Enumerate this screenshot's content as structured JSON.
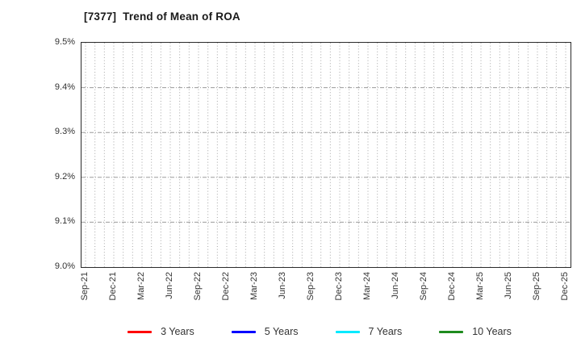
{
  "page": {
    "background": "#ffffff"
  },
  "chart_data": {
    "type": "line",
    "title": "[7377]  Trend of Mean of ROA",
    "xlabel": "",
    "ylabel": "",
    "ylim": [
      9.0,
      9.5
    ],
    "y_tick_step": 0.1,
    "y_tick_labels": [
      "9.0%",
      "9.1%",
      "9.2%",
      "9.3%",
      "9.4%",
      "9.5%"
    ],
    "x_tick_labels": [
      "Sep-21",
      "Dec-21",
      "Mar-22",
      "Jun-22",
      "Sep-22",
      "Dec-22",
      "Mar-23",
      "Jun-23",
      "Sep-23",
      "Dec-23",
      "Mar-24",
      "Jun-24",
      "Sep-24",
      "Dec-24",
      "Mar-25",
      "Jun-25",
      "Sep-25",
      "Dec-25"
    ],
    "months_between_ticks": 3,
    "grid": {
      "vertical": "dotted, one line per month",
      "horizontal": "dash-dot, one line per 0.1%",
      "vertical_color": "#a6a6a6",
      "horizontal_color": "#9b9b9b"
    },
    "axis_border_color": "#2b2b2b",
    "tick_label_color": "#333333",
    "title_color": "#1a1a1a",
    "series": [
      {
        "name": "3 Years",
        "color": "#ff0000",
        "values": []
      },
      {
        "name": "5 Years",
        "color": "#0000ff",
        "values": []
      },
      {
        "name": "7 Years",
        "color": "#00eaff",
        "values": []
      },
      {
        "name": "10 Years",
        "color": "#1e8b1e",
        "values": []
      }
    ],
    "legend": {
      "position": "bottom",
      "entries": [
        "3 Years",
        "5 Years",
        "7 Years",
        "10 Years"
      ]
    },
    "plot_content_note": "no data lines visible in plot area"
  }
}
